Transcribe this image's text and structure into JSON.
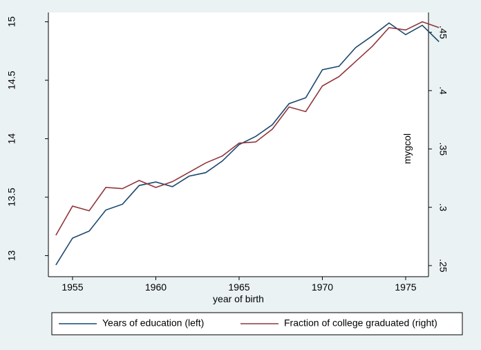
{
  "chart_data": {
    "type": "line",
    "x": [
      1954,
      1955,
      1956,
      1957,
      1958,
      1959,
      1960,
      1961,
      1962,
      1963,
      1964,
      1965,
      1966,
      1967,
      1968,
      1969,
      1970,
      1971,
      1972,
      1973,
      1974,
      1975,
      1976,
      1977
    ],
    "series": [
      {
        "name": "Years of education (left)",
        "color": "#1a476f",
        "axis": "y",
        "values": [
          12.92,
          13.15,
          13.21,
          13.39,
          13.44,
          13.6,
          13.63,
          13.59,
          13.68,
          13.71,
          13.81,
          13.95,
          14.02,
          14.12,
          14.3,
          14.35,
          14.59,
          14.62,
          14.78,
          14.88,
          14.99,
          14.89,
          14.97,
          14.83
        ]
      },
      {
        "name": "Fraction of college graduated (right)",
        "color": "#90353b",
        "axis": "y2",
        "values": [
          0.276,
          0.301,
          0.297,
          0.317,
          0.316,
          0.323,
          0.317,
          0.322,
          0.33,
          0.338,
          0.344,
          0.355,
          0.356,
          0.367,
          0.386,
          0.382,
          0.404,
          0.412,
          0.425,
          0.438,
          0.454,
          0.452,
          0.459,
          0.454
        ]
      }
    ],
    "xlabel": "year of birth",
    "y2label": "mygcol",
    "xlim": [
      1953.55,
      1976.37
    ],
    "xticks": [
      1955,
      1960,
      1965,
      1970,
      1975
    ],
    "ylim": [
      12.82,
      15.08
    ],
    "yticks": [
      13,
      13.5,
      14,
      14.5,
      15
    ],
    "y2lim": [
      0.2405,
      0.467
    ],
    "y2ticks": [
      {
        "value": 0.25,
        "label": ".25"
      },
      {
        "value": 0.3,
        "label": ".3"
      },
      {
        "value": 0.35,
        "label": ".35"
      },
      {
        "value": 0.4,
        "label": ".4"
      },
      {
        "value": 0.45,
        "label": ".45"
      }
    ],
    "legend": "bottom"
  }
}
